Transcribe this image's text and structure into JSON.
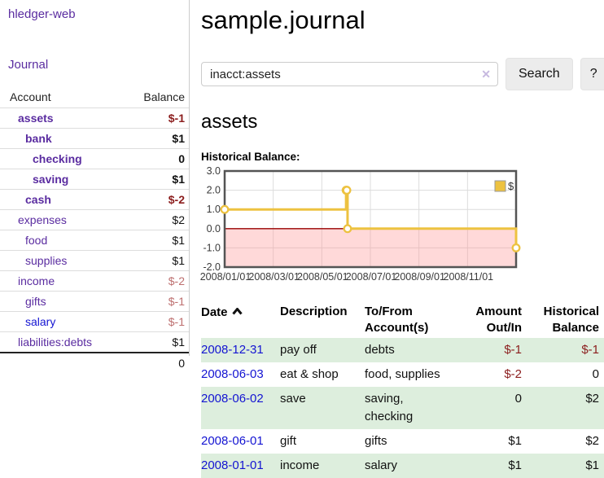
{
  "app": {
    "brand": "hledger-web",
    "nav": {
      "journal": "Journal"
    }
  },
  "sidebar": {
    "header": {
      "account": "Account",
      "balance": "Balance"
    },
    "rows": [
      {
        "name": "assets",
        "balance": "$-1"
      },
      {
        "name": "bank",
        "balance": "$1"
      },
      {
        "name": "checking",
        "balance": "0"
      },
      {
        "name": "saving",
        "balance": "$1"
      },
      {
        "name": "cash",
        "balance": "$-2"
      },
      {
        "name": "expenses",
        "balance": "$2"
      },
      {
        "name": "food",
        "balance": "$1"
      },
      {
        "name": "supplies",
        "balance": "$1"
      },
      {
        "name": "income",
        "balance": "$-2"
      },
      {
        "name": "gifts",
        "balance": "$-1"
      },
      {
        "name": "salary",
        "balance": "$-1"
      },
      {
        "name": "liabilities:debts",
        "balance": "$1"
      }
    ],
    "total": "0"
  },
  "main": {
    "title": "sample.journal",
    "search": {
      "value": "inacct:assets",
      "clear_icon": "✕",
      "button": "Search",
      "help": "?"
    },
    "account_heading": "assets",
    "chart_title": "Historical Balance:",
    "table": {
      "headers": {
        "date": "Date",
        "description": "Description",
        "tofrom": "To/From Account(s)",
        "amount": "Amount Out/In",
        "balance": "Historical Balance"
      },
      "rows": [
        {
          "date": "2008-12-31",
          "description": "pay off",
          "accounts": "debts",
          "amount": "$-1",
          "balance": "$-1"
        },
        {
          "date": "2008-06-03",
          "description": "eat & shop",
          "accounts": "food, supplies",
          "amount": "$-2",
          "balance": "0"
        },
        {
          "date": "2008-06-02",
          "description": "save",
          "accounts": "saving, checking",
          "amount": "0",
          "balance": "$2"
        },
        {
          "date": "2008-06-01",
          "description": "gift",
          "accounts": "gifts",
          "amount": "$1",
          "balance": "$2"
        },
        {
          "date": "2008-01-01",
          "description": "income",
          "accounts": "salary",
          "amount": "$1",
          "balance": "$1"
        }
      ]
    }
  },
  "chart_data": {
    "type": "line",
    "step": true,
    "title": "Historical Balance:",
    "legend": {
      "label": "$",
      "position": "top-right"
    },
    "xlim": [
      0,
      12
    ],
    "ylim": [
      -2,
      3
    ],
    "grid": true,
    "series": [
      {
        "name": "$",
        "color": "#edc240",
        "points": [
          {
            "date": "2008-01-01",
            "x": 0,
            "y": 1
          },
          {
            "date": "2008-06-01",
            "x": 5.0,
            "y": 2
          },
          {
            "date": "2008-06-02",
            "x": 5.03,
            "y": 2
          },
          {
            "date": "2008-06-03",
            "x": 5.06,
            "y": 0
          },
          {
            "date": "2008-12-31",
            "x": 12,
            "y": -1
          }
        ]
      }
    ],
    "xticks": [
      {
        "x": 0,
        "label": "2008/01/01"
      },
      {
        "x": 2,
        "label": "2008/03/01"
      },
      {
        "x": 4,
        "label": "2008/05/01"
      },
      {
        "x": 6,
        "label": "2008/07/01"
      },
      {
        "x": 8,
        "label": "2008/09/01"
      },
      {
        "x": 10,
        "label": "2008/11/01"
      }
    ],
    "yticks": [
      {
        "y": 3,
        "label": "3.0"
      },
      {
        "y": 2,
        "label": "2.0"
      },
      {
        "y": 1,
        "label": "1.0"
      },
      {
        "y": 0,
        "label": "0.0"
      },
      {
        "y": -1,
        "label": "-1.0"
      },
      {
        "y": -2,
        "label": "-2.0"
      }
    ],
    "negative_region_fill": "rgba(255,145,145,0.35)",
    "zero_line_color": "#990000",
    "grid_color": "#dcdcdc",
    "border_color": "#545454",
    "tick_label_color": "#3a3a3a"
  },
  "colors": {
    "link_purple": "#5a2ca0",
    "link_blue": "#1414d2",
    "negative_dark_red": "#8b1d1d",
    "negative_light_red": "#bd6f6f",
    "row_stripe_green": "#ddeedd",
    "series_gold": "#edc240"
  }
}
